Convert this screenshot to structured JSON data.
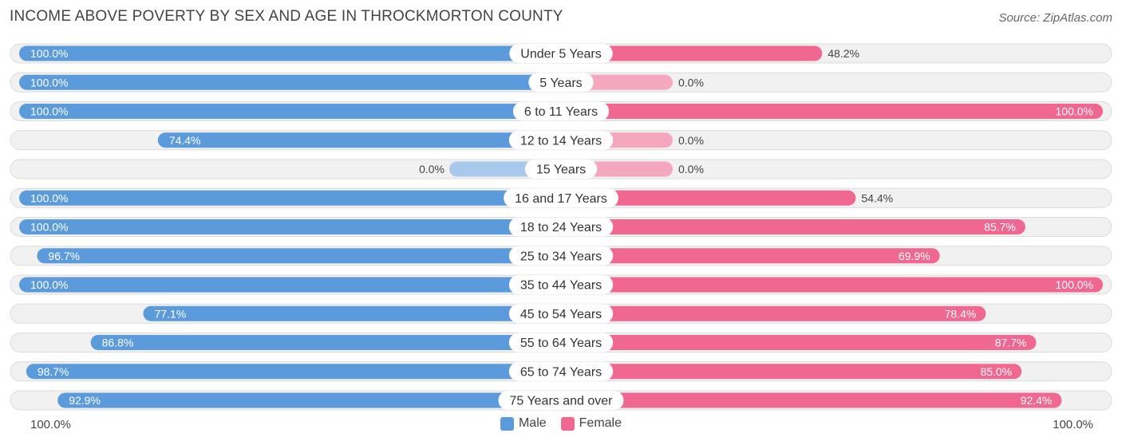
{
  "title": "INCOME ABOVE POVERTY BY SEX AND AGE IN THROCKMORTON COUNTY",
  "source": "Source: ZipAtlas.com",
  "colors": {
    "male_strong": "#5b9bdc",
    "male_light": "#a9c9ec",
    "female_strong": "#f06892",
    "female_light": "#f5a7c0"
  },
  "chart_data": {
    "type": "bar",
    "orientation": "horizontal-diverging",
    "categories": [
      "Under 5 Years",
      "5 Years",
      "6 to 11 Years",
      "12 to 14 Years",
      "15 Years",
      "16 and 17 Years",
      "18 to 24 Years",
      "25 to 34 Years",
      "35 to 44 Years",
      "45 to 54 Years",
      "55 to 64 Years",
      "65 to 74 Years",
      "75 Years and over"
    ],
    "series": [
      {
        "name": "Male",
        "values": [
          100.0,
          100.0,
          100.0,
          74.4,
          0.0,
          100.0,
          100.0,
          96.7,
          100.0,
          77.1,
          86.8,
          98.7,
          92.9
        ],
        "labels": [
          "100.0%",
          "100.0%",
          "100.0%",
          "74.4%",
          "0.0%",
          "100.0%",
          "100.0%",
          "96.7%",
          "100.0%",
          "77.1%",
          "86.8%",
          "98.7%",
          "92.9%"
        ]
      },
      {
        "name": "Female",
        "values": [
          48.2,
          0.0,
          100.0,
          0.0,
          0.0,
          54.4,
          85.7,
          69.9,
          100.0,
          78.4,
          87.7,
          85.0,
          92.4
        ],
        "labels": [
          "48.2%",
          "0.0%",
          "100.0%",
          "0.0%",
          "0.0%",
          "54.4%",
          "85.7%",
          "69.9%",
          "100.0%",
          "78.4%",
          "87.7%",
          "85.0%",
          "92.4%"
        ]
      }
    ],
    "xlim": [
      0,
      100
    ],
    "axis_labels": {
      "left": "100.0%",
      "right": "100.0%"
    },
    "legend": [
      "Male",
      "Female"
    ],
    "legend_position": "bottom-center"
  }
}
